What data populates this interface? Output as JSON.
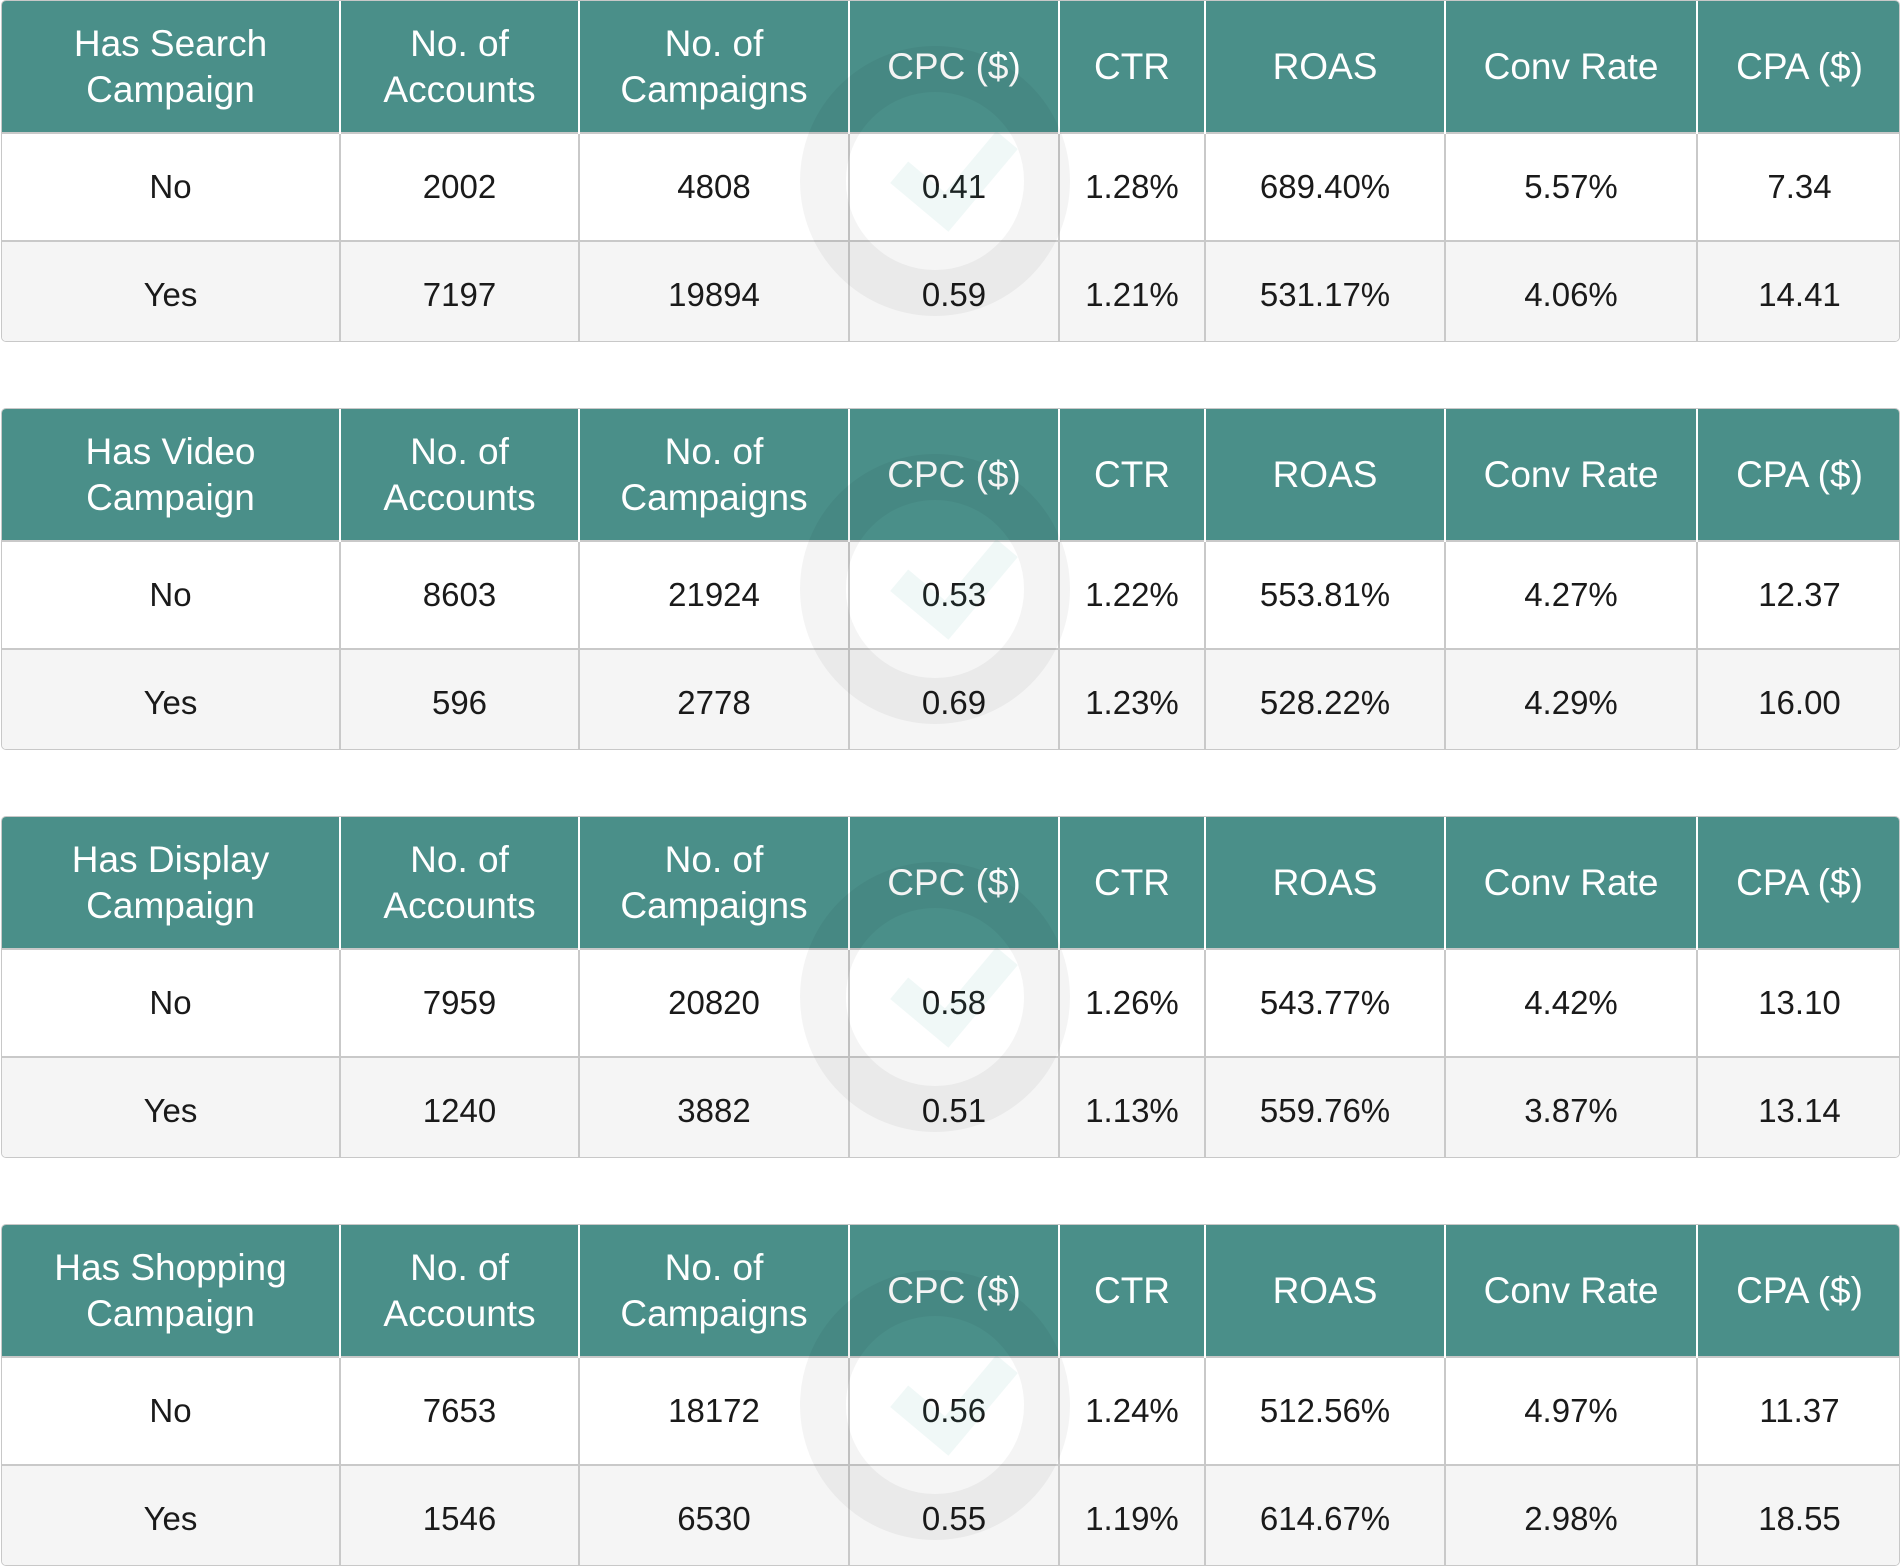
{
  "tables": [
    {
      "group_header": "Has Search Campaign",
      "columns": [
        "No. of Accounts",
        "No. of Campaigns",
        "CPC ($)",
        "CTR",
        "ROAS",
        "Conv Rate",
        "CPA ($)"
      ],
      "rows": [
        [
          "No",
          "2002",
          "4808",
          "0.41",
          "1.28%",
          "689.40%",
          "5.57%",
          "7.34"
        ],
        [
          "Yes",
          "7197",
          "19894",
          "0.59",
          "1.21%",
          "531.17%",
          "4.06%",
          "14.41"
        ]
      ]
    },
    {
      "group_header": "Has Video Campaign",
      "columns": [
        "No. of Accounts",
        "No. of Campaigns",
        "CPC ($)",
        "CTR",
        "ROAS",
        "Conv Rate",
        "CPA ($)"
      ],
      "rows": [
        [
          "No",
          "8603",
          "21924",
          "0.53",
          "1.22%",
          "553.81%",
          "4.27%",
          "12.37"
        ],
        [
          "Yes",
          "596",
          "2778",
          "0.69",
          "1.23%",
          "528.22%",
          "4.29%",
          "16.00"
        ]
      ]
    },
    {
      "group_header": "Has Display Campaign",
      "columns": [
        "No. of Accounts",
        "No. of Campaigns",
        "CPC ($)",
        "CTR",
        "ROAS",
        "Conv Rate",
        "CPA ($)"
      ],
      "rows": [
        [
          "No",
          "7959",
          "20820",
          "0.58",
          "1.26%",
          "543.77%",
          "4.42%",
          "13.10"
        ],
        [
          "Yes",
          "1240",
          "3882",
          "0.51",
          "1.13%",
          "559.76%",
          "3.87%",
          "13.14"
        ]
      ]
    },
    {
      "group_header": "Has Shopping Campaign",
      "columns": [
        "No. of Accounts",
        "No. of Campaigns",
        "CPC ($)",
        "CTR",
        "ROAS",
        "Conv Rate",
        "CPA ($)"
      ],
      "rows": [
        [
          "No",
          "7653",
          "18172",
          "0.56",
          "1.24%",
          "512.56%",
          "4.97%",
          "11.37"
        ],
        [
          "Yes",
          "1546",
          "6530",
          "0.55",
          "1.19%",
          "614.67%",
          "2.98%",
          "18.55"
        ]
      ]
    }
  ],
  "colors": {
    "header_bg": "#4a8f89",
    "header_text": "#ffffff",
    "row_alt_bg": "#f5f5f5"
  }
}
